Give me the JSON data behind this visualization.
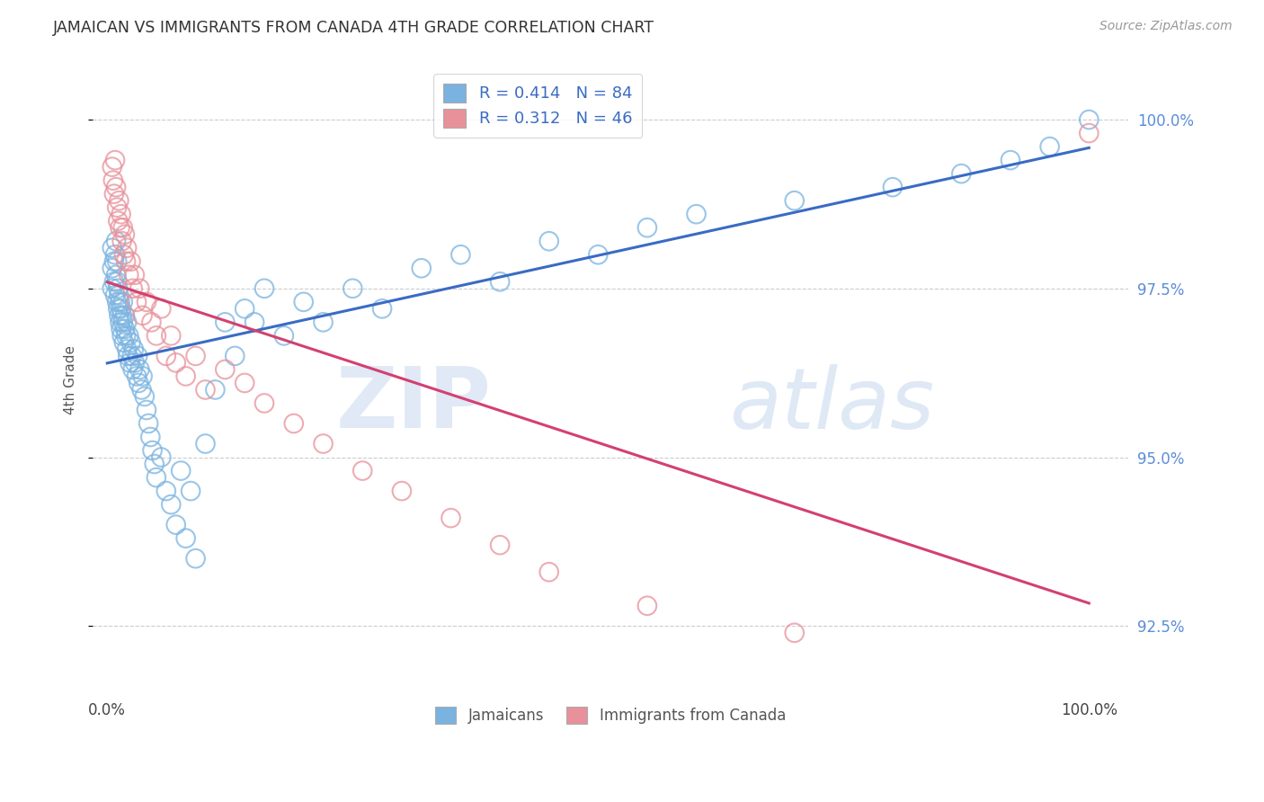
{
  "title": "JAMAICAN VS IMMIGRANTS FROM CANADA 4TH GRADE CORRELATION CHART",
  "source": "Source: ZipAtlas.com",
  "ylabel": "4th Grade",
  "series1_label": "Jamaicans",
  "series2_label": "Immigrants from Canada",
  "R1": 0.414,
  "N1": 84,
  "R2": 0.312,
  "N2": 46,
  "color1": "#7ab3e0",
  "color2": "#e8919a",
  "trendline1_color": "#3a6bc4",
  "trendline2_color": "#d44070",
  "background_color": "#ffffff",
  "grid_color": "#cccccc",
  "right_axis_color": "#5b8dd9",
  "watermark_zip": "ZIP",
  "watermark_atlas": "atlas",
  "blue_x": [
    0.005,
    0.005,
    0.005,
    0.007,
    0.007,
    0.008,
    0.008,
    0.009,
    0.009,
    0.01,
    0.01,
    0.01,
    0.011,
    0.011,
    0.012,
    0.012,
    0.013,
    0.013,
    0.014,
    0.014,
    0.015,
    0.015,
    0.016,
    0.016,
    0.017,
    0.018,
    0.018,
    0.019,
    0.02,
    0.02,
    0.021,
    0.022,
    0.023,
    0.024,
    0.025,
    0.026,
    0.027,
    0.028,
    0.03,
    0.031,
    0.032,
    0.033,
    0.035,
    0.036,
    0.038,
    0.04,
    0.042,
    0.044,
    0.046,
    0.048,
    0.05,
    0.055,
    0.06,
    0.065,
    0.07,
    0.075,
    0.08,
    0.085,
    0.09,
    0.1,
    0.11,
    0.12,
    0.13,
    0.14,
    0.15,
    0.16,
    0.18,
    0.2,
    0.22,
    0.25,
    0.28,
    0.32,
    0.36,
    0.4,
    0.45,
    0.5,
    0.55,
    0.6,
    0.7,
    0.8,
    0.87,
    0.92,
    0.96,
    1.0
  ],
  "blue_y": [
    97.8,
    98.1,
    97.5,
    97.6,
    97.9,
    98.0,
    97.4,
    97.7,
    98.2,
    97.3,
    97.6,
    97.9,
    97.2,
    97.5,
    97.1,
    97.4,
    97.0,
    97.3,
    96.9,
    97.2,
    96.8,
    97.1,
    97.0,
    97.3,
    96.7,
    96.9,
    97.1,
    96.8,
    96.6,
    97.0,
    96.5,
    96.8,
    96.4,
    96.7,
    96.5,
    96.3,
    96.6,
    96.4,
    96.2,
    96.5,
    96.1,
    96.3,
    96.0,
    96.2,
    95.9,
    95.7,
    95.5,
    95.3,
    95.1,
    94.9,
    94.7,
    95.0,
    94.5,
    94.3,
    94.0,
    94.8,
    93.8,
    94.5,
    93.5,
    95.2,
    96.0,
    97.0,
    96.5,
    97.2,
    97.0,
    97.5,
    96.8,
    97.3,
    97.0,
    97.5,
    97.2,
    97.8,
    98.0,
    97.6,
    98.2,
    98.0,
    98.4,
    98.6,
    98.8,
    99.0,
    99.2,
    99.4,
    99.6,
    100.0
  ],
  "pink_x": [
    0.005,
    0.006,
    0.007,
    0.008,
    0.009,
    0.01,
    0.011,
    0.012,
    0.013,
    0.014,
    0.015,
    0.016,
    0.017,
    0.018,
    0.019,
    0.02,
    0.022,
    0.024,
    0.026,
    0.028,
    0.03,
    0.033,
    0.036,
    0.04,
    0.045,
    0.05,
    0.055,
    0.06,
    0.065,
    0.07,
    0.08,
    0.09,
    0.1,
    0.12,
    0.14,
    0.16,
    0.19,
    0.22,
    0.26,
    0.3,
    0.35,
    0.4,
    0.45,
    0.55,
    0.7,
    1.0
  ],
  "pink_y": [
    99.3,
    99.1,
    98.9,
    99.4,
    99.0,
    98.7,
    98.5,
    98.8,
    98.4,
    98.6,
    98.2,
    98.4,
    98.0,
    98.3,
    97.9,
    98.1,
    97.7,
    97.9,
    97.5,
    97.7,
    97.3,
    97.5,
    97.1,
    97.3,
    97.0,
    96.8,
    97.2,
    96.5,
    96.8,
    96.4,
    96.2,
    96.5,
    96.0,
    96.3,
    96.1,
    95.8,
    95.5,
    95.2,
    94.8,
    94.5,
    94.1,
    93.7,
    93.3,
    92.8,
    92.4,
    99.8
  ]
}
